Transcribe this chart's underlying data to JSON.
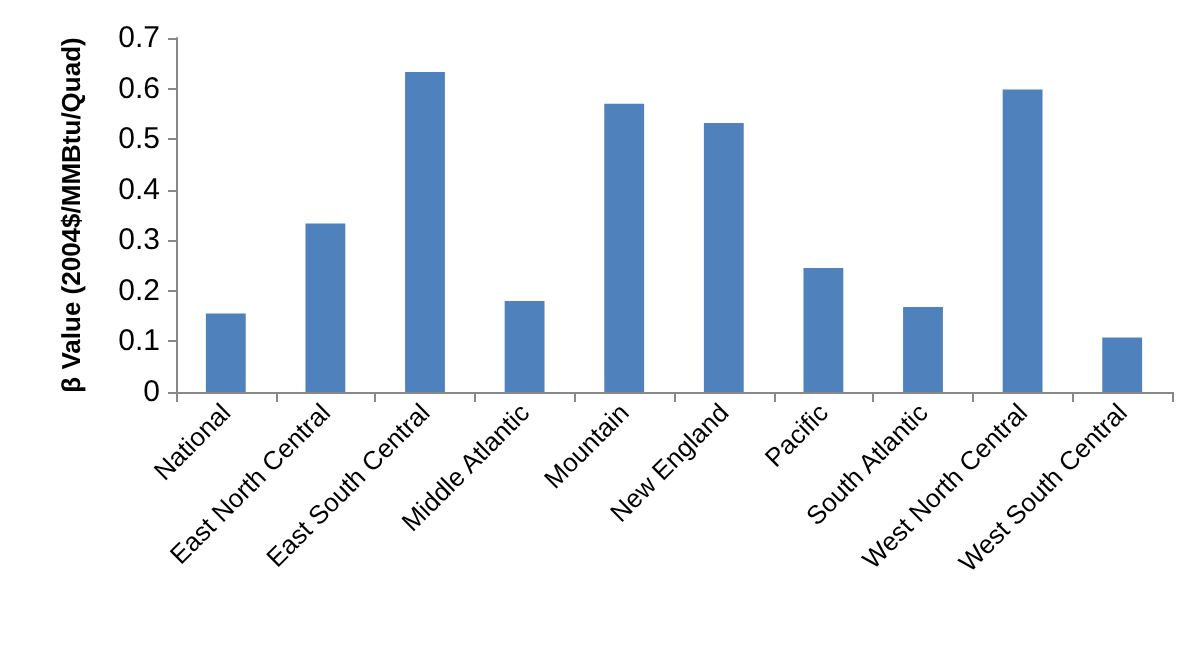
{
  "chart_data": {
    "type": "bar",
    "ylabel": "β Value (2004$/MMBtu/Quad)",
    "categories": [
      "National",
      "East North Central",
      "East South Central",
      "Middle Atlantic",
      "Mountain",
      "New England",
      "Pacific",
      "South Atlantic",
      "West North Central",
      "West South Central"
    ],
    "values": [
      0.155,
      0.333,
      0.633,
      0.18,
      0.57,
      0.532,
      0.245,
      0.168,
      0.598,
      0.108
    ],
    "color": "#4f81bd",
    "ylim": [
      0,
      0.7
    ],
    "yticks": [
      0,
      0.1,
      0.2,
      0.3,
      0.4,
      0.5,
      0.6,
      0.7
    ],
    "grid": false
  }
}
